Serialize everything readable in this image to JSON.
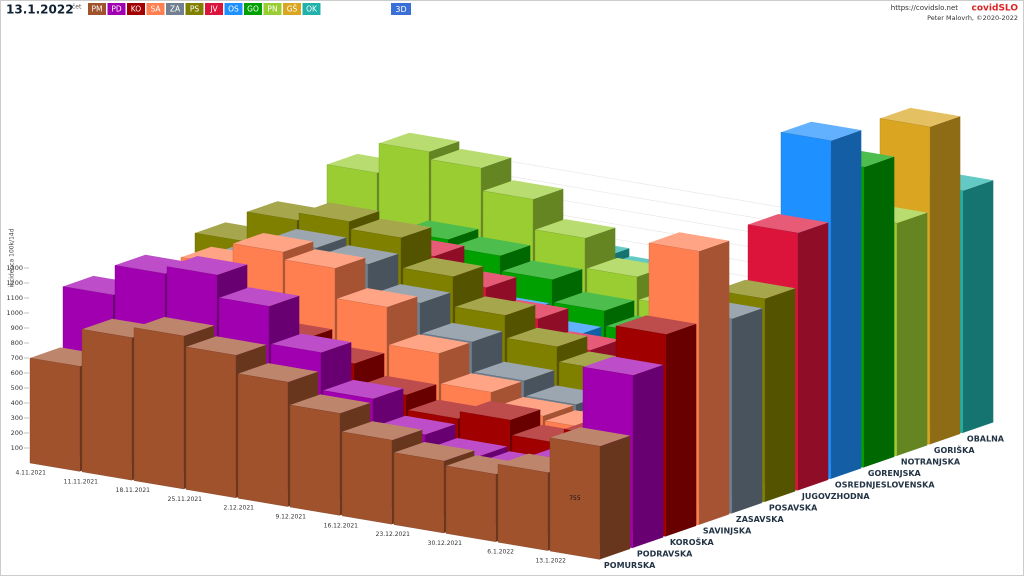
{
  "chart_data": {
    "type": "bar3d",
    "title": "13.1.2022",
    "subtitle": "čet",
    "mode_button": "3D",
    "source_url": "https://covidslo.net",
    "brand": "covidSLO",
    "credit": "Peter Malovrh, ©2020-2022",
    "y_label": "incidenca 100k/14d",
    "categories": [
      "4.11.2021",
      "11.11.2021",
      "18.11.2021",
      "25.11.2021",
      "2.12.2021",
      "9.12.2021",
      "16.12.2021",
      "23.12.2021",
      "30.12.2021",
      "6.1.2022",
      "13.1.2022"
    ],
    "ylim": [
      0,
      1300
    ],
    "yticks": [
      100,
      200,
      300,
      400,
      500,
      600,
      700,
      800,
      900,
      1000,
      1100,
      1200,
      1300
    ],
    "series": [
      {
        "name": "POMURSKA",
        "code": "PM",
        "color": "#a0522d",
        "values": [
          700,
          950,
          1020,
          950,
          830,
          680,
          560,
          480,
          450,
          520,
          755
        ]
      },
      {
        "name": "PODRAVSKA",
        "code": "PD",
        "color": "#a000b0",
        "values": [
          1100,
          1300,
          1350,
          1200,
          950,
          700,
          520,
          430,
          400,
          500,
          1150
        ]
      },
      {
        "name": "KOROŠKA",
        "code": "KO",
        "color": "#a00000",
        "values": [
          800,
          900,
          950,
          900,
          800,
          650,
          550,
          600,
          500,
          600,
          1347
        ]
      },
      {
        "name": "SAVINJSKA",
        "code": "SA",
        "color": "#ff7f50",
        "values": [
          1000,
          1200,
          1350,
          1300,
          1100,
          850,
          650,
          550,
          520,
          700,
          1824
        ]
      },
      {
        "name": "ZASAVSKA",
        "code": "ZA",
        "color": "#708090",
        "values": [
          900,
          1150,
          1300,
          1250,
          1050,
          850,
          650,
          550,
          500,
          700,
          1297
        ]
      },
      {
        "name": "POSAVSKA",
        "code": "PS",
        "color": "#808000",
        "values": [
          1150,
          1350,
          1400,
          1350,
          1150,
          950,
          800,
          700,
          650,
          900,
          1354
        ]
      },
      {
        "name": "JUGOVZHODNA",
        "code": "JV",
        "color": "#dc143c",
        "values": [
          1000,
          1150,
          1200,
          1150,
          1000,
          850,
          700,
          600,
          550,
          800,
          1716
        ]
      },
      {
        "name": "OSREDNJESLOVENSKA",
        "code": "OS",
        "color": "#1e90ff",
        "values": [
          700,
          800,
          850,
          850,
          750,
          650,
          550,
          550,
          600,
          1000,
          2255
        ]
      },
      {
        "name": "GORENJSKA",
        "code": "GO",
        "color": "#00a000",
        "values": [
          900,
          1000,
          1050,
          1000,
          900,
          750,
          650,
          600,
          600,
          950,
          2002
        ]
      },
      {
        "name": "NOTRANJSKA",
        "code": "PN",
        "color": "#9acd32",
        "values": [
          1300,
          1500,
          1450,
          1300,
          1100,
          900,
          750,
          650,
          600,
          900,
          1552
        ]
      },
      {
        "name": "GORIŠKA",
        "code": "GŠ",
        "color": "#daa520",
        "values": [
          800,
          900,
          900,
          850,
          750,
          650,
          550,
          500,
          550,
          900,
          2117
        ]
      },
      {
        "name": "OBALNA",
        "code": "OK",
        "color": "#20b2aa",
        "values": [
          700,
          750,
          800,
          750,
          700,
          600,
          500,
          450,
          500,
          850,
          1614
        ]
      }
    ]
  }
}
